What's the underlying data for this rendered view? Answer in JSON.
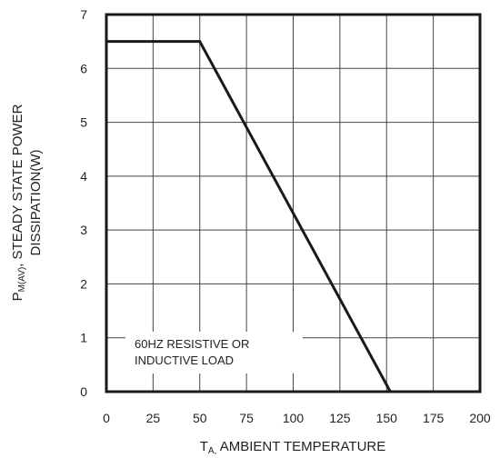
{
  "chart_data": {
    "type": "line",
    "title": "",
    "xlabel_prefix": "T",
    "xlabel_sub": "A,",
    "xlabel_main": " AMBIENT TEMPERATURE",
    "ylabel_line1_prefix": "P",
    "ylabel_line1_sub": "M(AV)",
    "ylabel_line1_main": ", STEADY STATE POWER",
    "ylabel_line2": "DISSIPATION(W)",
    "xlim": [
      0,
      200
    ],
    "ylim": [
      0,
      7
    ],
    "xticks": [
      "0",
      "25",
      "50",
      "75",
      "100",
      "125",
      "150",
      "175",
      "200"
    ],
    "yticks": [
      "0",
      "1",
      "2",
      "3",
      "4",
      "5",
      "6",
      "7"
    ],
    "grid": true,
    "series": [
      {
        "x": [
          0,
          50,
          152
        ],
        "y": [
          6.5,
          6.5,
          0
        ]
      }
    ],
    "annotation_line1": "60HZ RESISTIVE OR",
    "annotation_line2": "INDUCTIVE LOAD"
  }
}
